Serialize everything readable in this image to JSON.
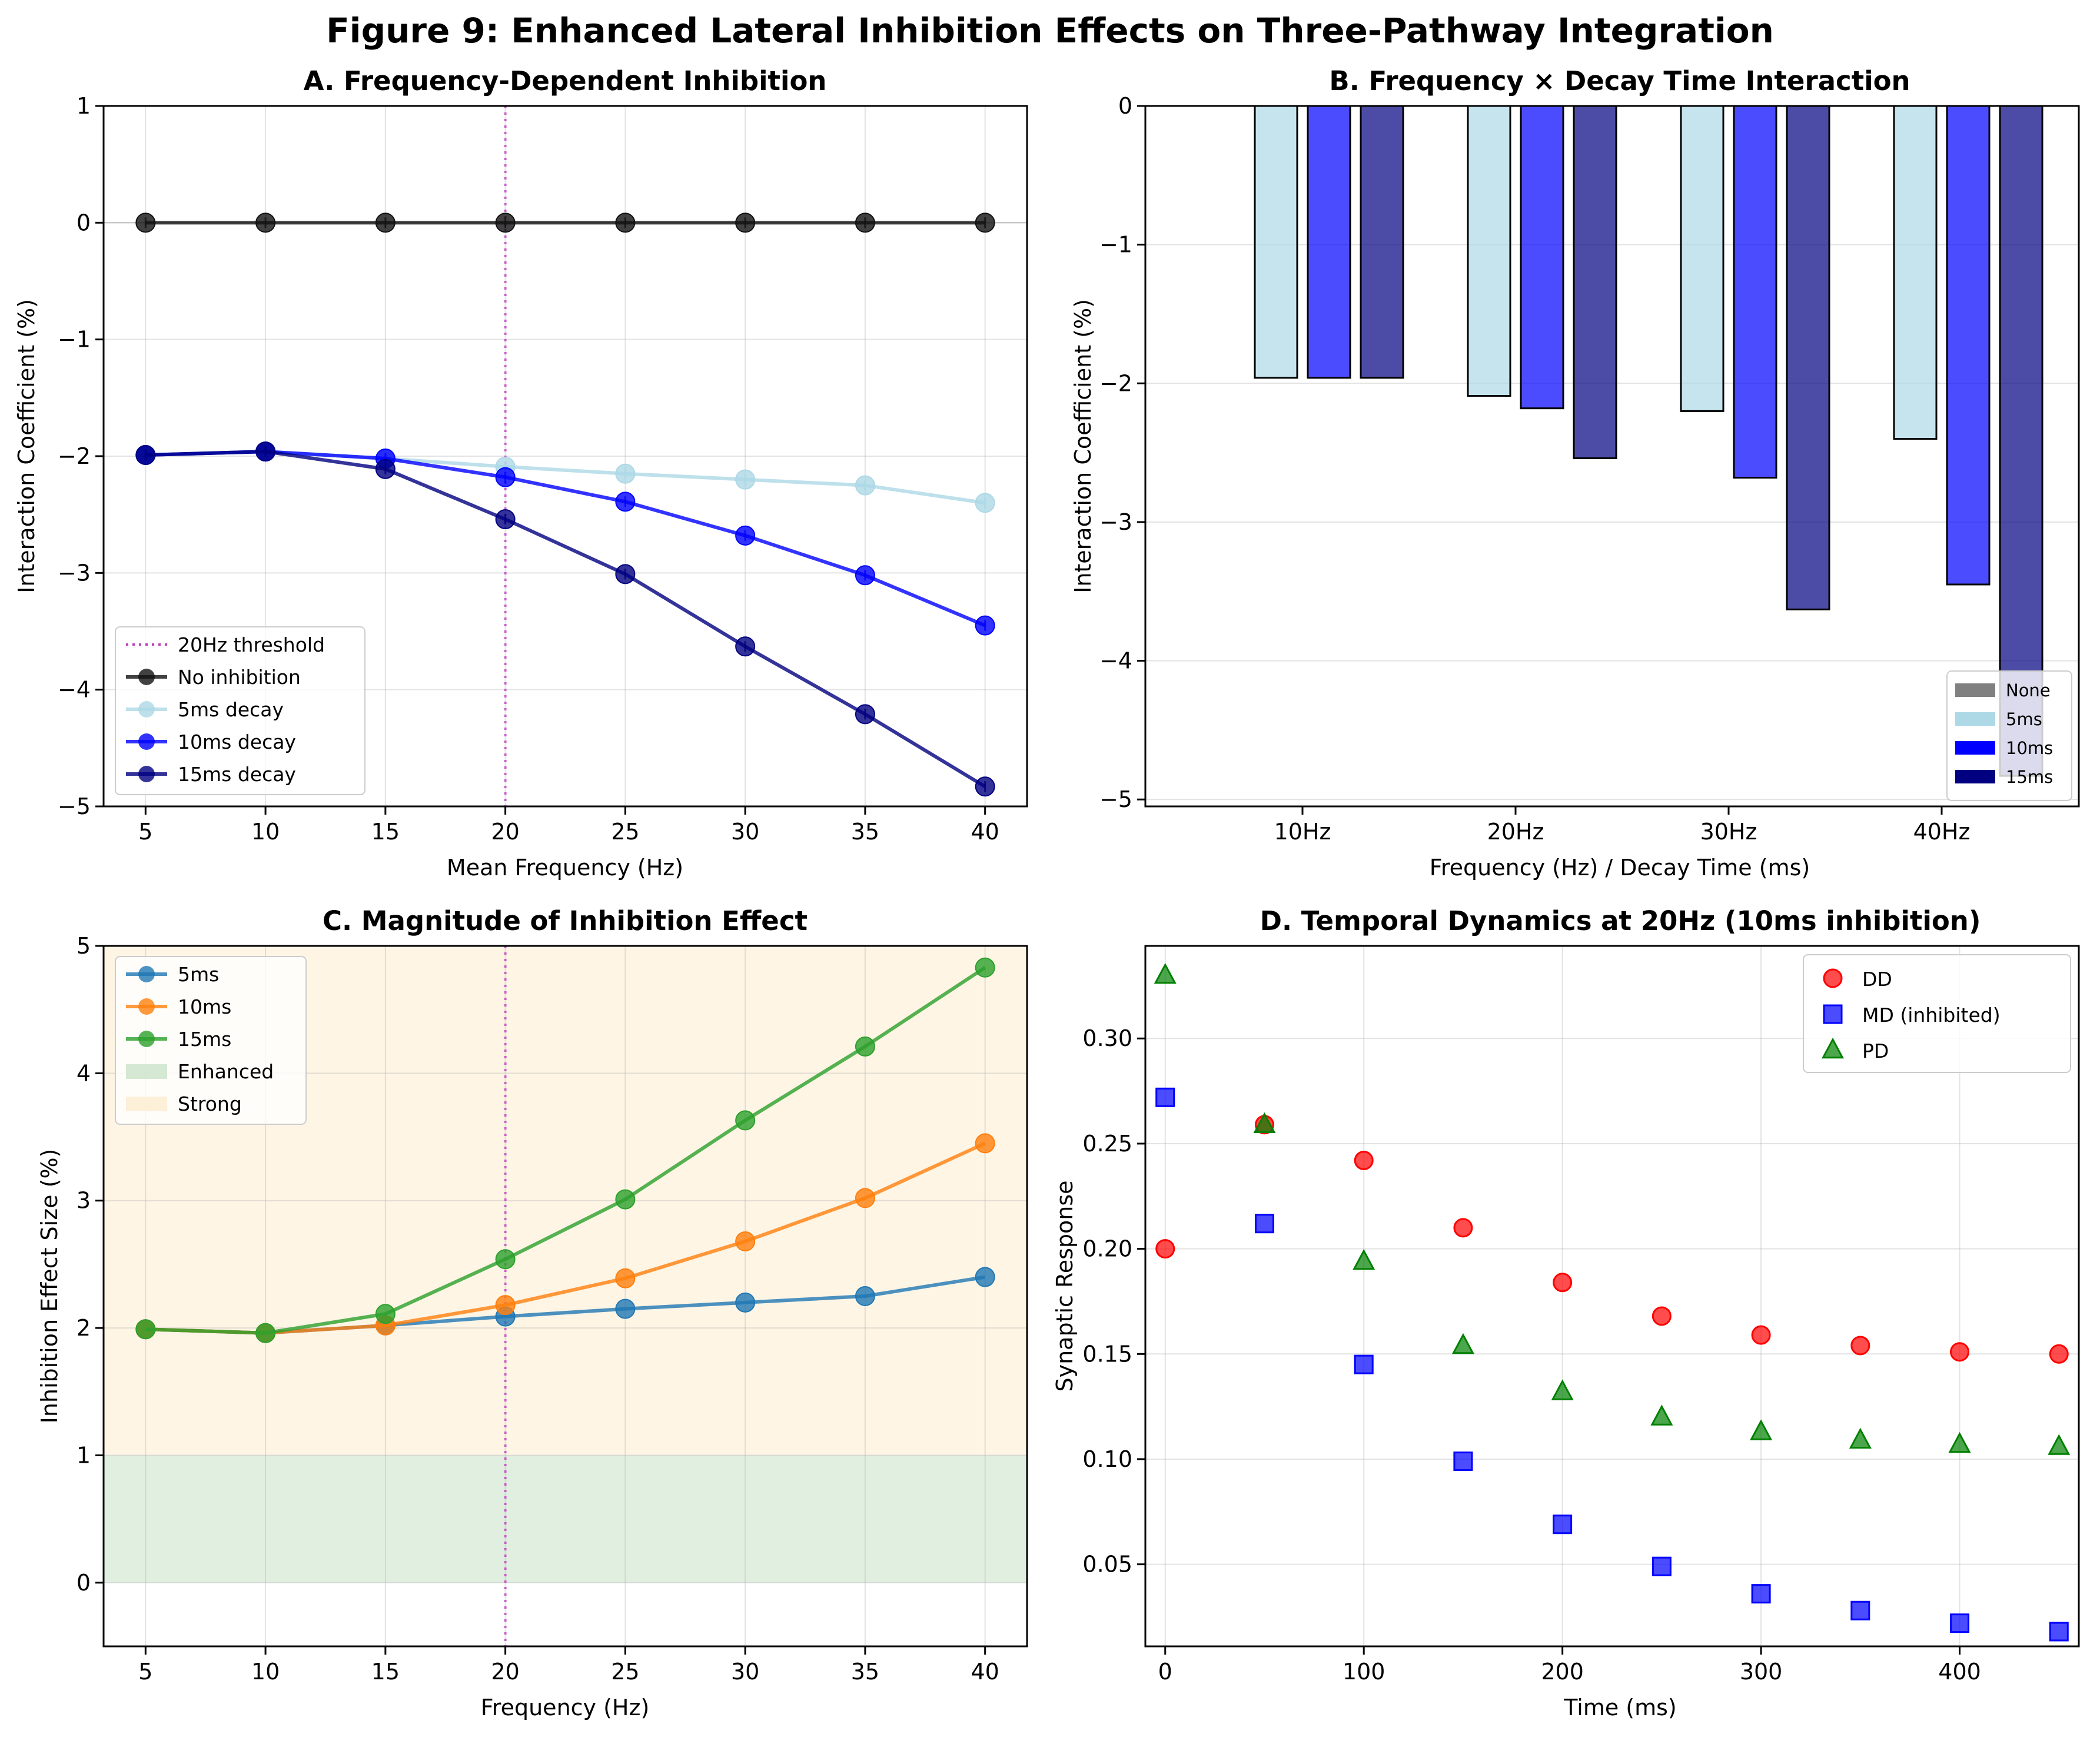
{
  "figure_title": "Figure 9: Enhanced Lateral Inhibition Effects on Three-Pathway Integration",
  "colors": {
    "none": "#111111",
    "d5": "#add8e6",
    "d10": "#0000ff",
    "d15": "#000080",
    "threshold": "#bf40bf",
    "mpl_blue": "#1f77b4",
    "mpl_orange": "#ff7f0e",
    "mpl_green": "#2ca02c",
    "enhanced_band": "#c9e2c9",
    "strong_band": "#fdeccf",
    "DD": "#ff0000",
    "MD": "#0000ff",
    "PD": "#008000",
    "bar_none": "#808080"
  },
  "chart_data": [
    {
      "id": "A",
      "type": "line",
      "title": "A. Frequency-Dependent Inhibition",
      "xlabel": "Mean Frequency (Hz)",
      "ylabel": "Interaction Coefficient (%)",
      "x": [
        5,
        10,
        15,
        20,
        25,
        30,
        35,
        40
      ],
      "xlim": [
        3.25,
        41.75
      ],
      "ylim": [
        -5,
        1
      ],
      "xticks": [
        5,
        10,
        15,
        20,
        25,
        30,
        35,
        40
      ],
      "yticks": [
        1,
        0,
        -1,
        -2,
        -3,
        -4,
        -5
      ],
      "grid": true,
      "threshold_x": 20,
      "threshold_label": "20Hz threshold",
      "legend_position": "lower-left",
      "series": [
        {
          "name": "No inhibition",
          "color_key": "none",
          "values": [
            0,
            0,
            0,
            0,
            0,
            0,
            0,
            0
          ]
        },
        {
          "name": "5ms decay",
          "color_key": "d5",
          "values": [
            -1.99,
            -1.96,
            -2.02,
            -2.09,
            -2.15,
            -2.2,
            -2.25,
            -2.4
          ]
        },
        {
          "name": "10ms decay",
          "color_key": "d10",
          "values": [
            -1.99,
            -1.96,
            -2.02,
            -2.18,
            -2.39,
            -2.68,
            -3.02,
            -3.45
          ]
        },
        {
          "name": "15ms decay",
          "color_key": "d15",
          "values": [
            -1.99,
            -1.96,
            -2.11,
            -2.54,
            -3.01,
            -3.63,
            -4.21,
            -4.83
          ]
        }
      ]
    },
    {
      "id": "B",
      "type": "bar",
      "title": "B. Frequency × Decay Time Interaction",
      "xlabel": "Frequency (Hz) / Decay Time (ms)",
      "ylabel": "Interaction Coefficient (%)",
      "categories": [
        "10Hz",
        "20Hz",
        "30Hz",
        "40Hz"
      ],
      "ylim": [
        -5.05,
        0
      ],
      "yticks": [
        0,
        -1,
        -2,
        -3,
        -4,
        -5
      ],
      "grid": true,
      "legend_position": "lower-right",
      "series": [
        {
          "name": "None",
          "color_key": "bar_none",
          "values": [
            0,
            0,
            0,
            0
          ]
        },
        {
          "name": "5ms",
          "color_key": "d5",
          "values": [
            -1.96,
            -2.09,
            -2.2,
            -2.4
          ]
        },
        {
          "name": "10ms",
          "color_key": "d10",
          "values": [
            -1.96,
            -2.18,
            -2.68,
            -3.45
          ]
        },
        {
          "name": "15ms",
          "color_key": "d15",
          "values": [
            -1.96,
            -2.54,
            -3.63,
            -4.83
          ]
        }
      ]
    },
    {
      "id": "C",
      "type": "line",
      "title": "C. Magnitude of Inhibition Effect",
      "xlabel": "Frequency (Hz)",
      "ylabel": "Inhibition Effect Size (%)",
      "x": [
        5,
        10,
        15,
        20,
        25,
        30,
        35,
        40
      ],
      "xlim": [
        3.25,
        41.75
      ],
      "ylim": [
        -0.5,
        5
      ],
      "xticks": [
        5,
        10,
        15,
        20,
        25,
        30,
        35,
        40
      ],
      "yticks": [
        5,
        4,
        3,
        2,
        1,
        0
      ],
      "grid": true,
      "threshold_x": 20,
      "bands": [
        {
          "name": "Enhanced",
          "color_key": "enhanced_band",
          "from": 0,
          "to": 1
        },
        {
          "name": "Strong",
          "color_key": "strong_band",
          "from": 1,
          "to": 5
        }
      ],
      "legend_position": "upper-left",
      "series": [
        {
          "name": "5ms",
          "color_key": "mpl_blue",
          "values": [
            1.99,
            1.96,
            2.02,
            2.09,
            2.15,
            2.2,
            2.25,
            2.4
          ]
        },
        {
          "name": "10ms",
          "color_key": "mpl_orange",
          "values": [
            1.99,
            1.96,
            2.02,
            2.18,
            2.39,
            2.68,
            3.02,
            3.45
          ]
        },
        {
          "name": "15ms",
          "color_key": "mpl_green",
          "values": [
            1.99,
            1.96,
            2.11,
            2.54,
            3.01,
            3.63,
            4.21,
            4.83
          ]
        }
      ]
    },
    {
      "id": "D",
      "type": "scatter",
      "title": "D. Temporal Dynamics at 20Hz (10ms inhibition)",
      "xlabel": "Time (ms)",
      "ylabel": "Synaptic Response",
      "x": [
        0,
        50,
        100,
        150,
        200,
        250,
        300,
        350,
        400,
        450
      ],
      "xlim": [
        -10,
        460
      ],
      "ylim": [
        0.011,
        0.344
      ],
      "xticks": [
        0,
        100,
        200,
        300,
        400
      ],
      "yticks": [
        0.3,
        0.25,
        0.2,
        0.15,
        0.1,
        0.05
      ],
      "ytick_labels": [
        "0.30",
        "0.25",
        "0.20",
        "0.15",
        "0.10",
        "0.05"
      ],
      "grid": true,
      "legend_position": "upper-right",
      "series": [
        {
          "name": "DD",
          "marker": "circle",
          "color_key": "DD",
          "values": [
            0.2,
            0.259,
            0.242,
            0.21,
            0.184,
            0.168,
            0.159,
            0.154,
            0.151,
            0.15
          ]
        },
        {
          "name": "MD (inhibited)",
          "marker": "square",
          "color_key": "MD",
          "values": [
            0.272,
            0.212,
            0.145,
            0.099,
            0.069,
            0.049,
            0.036,
            0.028,
            0.022,
            0.018
          ]
        },
        {
          "name": "PD",
          "marker": "triangle",
          "color_key": "PD",
          "values": [
            0.33,
            0.259,
            0.194,
            0.154,
            0.132,
            0.12,
            0.113,
            0.109,
            0.107,
            0.106
          ]
        }
      ]
    }
  ]
}
